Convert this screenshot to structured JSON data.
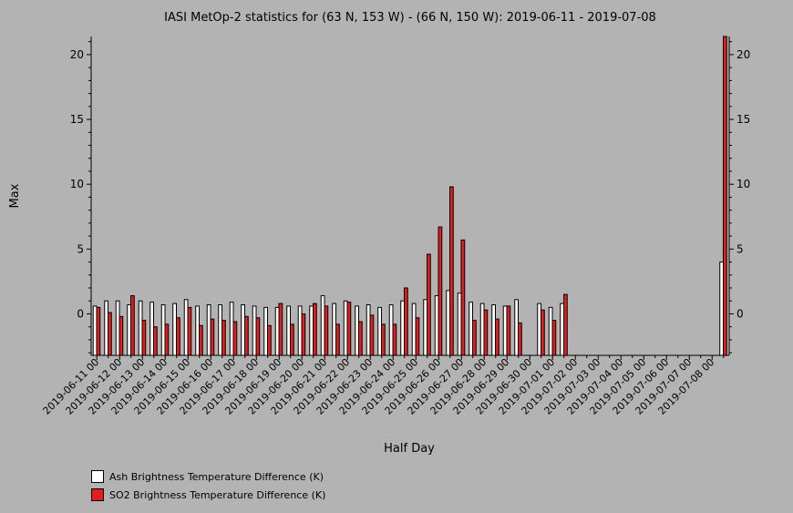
{
  "colors": {
    "background": "#b3b3b3",
    "ash": "#ffffff",
    "so2": "#e41e1e",
    "outline": "#000000"
  },
  "chart_data": {
    "type": "bar",
    "title": "IASI MetOp-2 statistics for (63 N, 153 W) - (66 N, 150 W): 2019-06-11 - 2019-07-08",
    "xlabel": "Half Day",
    "ylabel": "Max",
    "ylim": [
      -3.2,
      21.4
    ],
    "yticks": [
      0,
      5,
      10,
      15,
      20
    ],
    "y_axis_right": true,
    "grid": false,
    "legend_position": "bottom-left",
    "categories": [
      "2019-06-11 00",
      "2019-06-11 12",
      "2019-06-12 00",
      "2019-06-12 12",
      "2019-06-13 00",
      "2019-06-13 12",
      "2019-06-14 00",
      "2019-06-14 12",
      "2019-06-15 00",
      "2019-06-15 12",
      "2019-06-16 00",
      "2019-06-16 12",
      "2019-06-17 00",
      "2019-06-17 12",
      "2019-06-18 00",
      "2019-06-18 12",
      "2019-06-19 00",
      "2019-06-19 12",
      "2019-06-20 00",
      "2019-06-20 12",
      "2019-06-21 00",
      "2019-06-21 12",
      "2019-06-22 00",
      "2019-06-22 12",
      "2019-06-23 00",
      "2019-06-23 12",
      "2019-06-24 00",
      "2019-06-24 12",
      "2019-06-25 00",
      "2019-06-25 12",
      "2019-06-26 00",
      "2019-06-26 12",
      "2019-06-27 00",
      "2019-06-27 12",
      "2019-06-28 00",
      "2019-06-28 12",
      "2019-06-29 00",
      "2019-06-29 12",
      "2019-06-30 00",
      "2019-06-30 12",
      "2019-07-01 00",
      "2019-07-01 12",
      "2019-07-02 00",
      "2019-07-02 12",
      "2019-07-03 00",
      "2019-07-03 12",
      "2019-07-04 00",
      "2019-07-04 12",
      "2019-07-05 00",
      "2019-07-05 12",
      "2019-07-06 00",
      "2019-07-06 12",
      "2019-07-07 00",
      "2019-07-07 12",
      "2019-07-08 00",
      "2019-07-08 12"
    ],
    "tick_labels": [
      "2019-06-11 00",
      "2019-06-12 00",
      "2019-06-13 00",
      "2019-06-14 00",
      "2019-06-15 00",
      "2019-06-16 00",
      "2019-06-17 00",
      "2019-06-18 00",
      "2019-06-19 00",
      "2019-06-20 00",
      "2019-06-21 00",
      "2019-06-22 00",
      "2019-06-23 00",
      "2019-06-24 00",
      "2019-06-25 00",
      "2019-06-26 00",
      "2019-06-27 00",
      "2019-06-28 00",
      "2019-06-29 00",
      "2019-06-30 00",
      "2019-07-01 00",
      "2019-07-02 00",
      "2019-07-03 00",
      "2019-07-04 00",
      "2019-07-05 00",
      "2019-07-06 00",
      "2019-07-07 00",
      "2019-07-08 00"
    ],
    "series": [
      {
        "name": "Ash Brightness Temperature Difference (K)",
        "color": "#ffffff",
        "values": [
          0.6,
          1.0,
          1.0,
          0.7,
          1.0,
          0.9,
          0.7,
          0.8,
          1.1,
          0.6,
          0.7,
          0.7,
          0.9,
          0.7,
          0.6,
          0.5,
          0.5,
          0.6,
          0.6,
          0.6,
          1.4,
          0.8,
          1.0,
          0.6,
          0.7,
          0.5,
          0.7,
          1.0,
          0.8,
          1.1,
          1.4,
          1.8,
          1.6,
          0.9,
          0.8,
          0.7,
          0.6,
          1.1,
          null,
          0.8,
          0.5,
          0.8,
          null,
          null,
          null,
          null,
          null,
          null,
          null,
          null,
          null,
          null,
          null,
          null,
          null,
          4.0
        ]
      },
      {
        "name": "SO2 Brightness Temperature Difference (K)",
        "color": "#e41e1e",
        "values": [
          0.5,
          0.1,
          -0.2,
          1.4,
          -0.5,
          -1.0,
          -0.8,
          -0.3,
          0.5,
          -0.9,
          -0.4,
          -0.5,
          -0.6,
          -0.2,
          -0.3,
          -0.9,
          0.8,
          -0.8,
          0.0,
          0.8,
          0.6,
          -0.8,
          0.9,
          -0.6,
          -0.1,
          -0.8,
          -0.8,
          2.0,
          -0.3,
          4.6,
          6.7,
          9.8,
          5.7,
          -0.5,
          0.3,
          -0.4,
          0.6,
          -0.7,
          null,
          0.3,
          -0.5,
          1.5,
          null,
          null,
          null,
          null,
          null,
          null,
          null,
          null,
          null,
          null,
          null,
          null,
          null,
          21.4
        ]
      }
    ]
  }
}
